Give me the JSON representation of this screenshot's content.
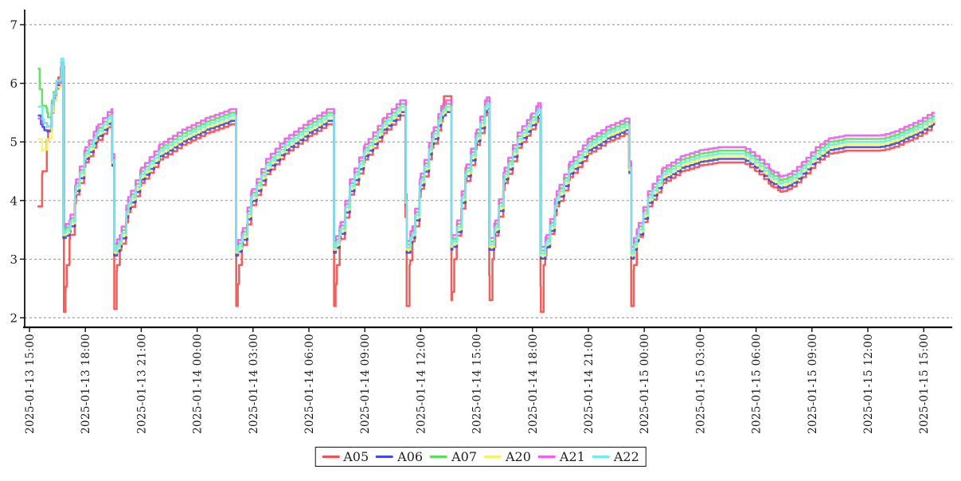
{
  "chart_data": {
    "type": "line",
    "title": "",
    "grid": "dashed-horizontal",
    "legend": {
      "position": "bottom-center",
      "entries": [
        "A05",
        "A06",
        "A07",
        "A20",
        "A21",
        "A22"
      ]
    },
    "y_axis": {
      "min": 2,
      "max": 7,
      "ticks": [
        7,
        6,
        5,
        4,
        3,
        2
      ]
    },
    "x_axis": {
      "tick_interval_hours": 3,
      "span_hours": 48.6,
      "tick_labels": [
        "2025-01-13 15:00",
        "2025-01-13 18:00",
        "2025-01-13 21:00",
        "2025-01-14 00:00",
        "2025-01-14 03:00",
        "2025-01-14 06:00",
        "2025-01-14 09:00",
        "2025-01-14 12:00",
        "2025-01-14 15:00",
        "2025-01-14 18:00",
        "2025-01-14 21:00",
        "2025-01-15 00:00",
        "2025-01-15 03:00",
        "2025-01-15 06:00",
        "2025-01-15 09:00",
        "2025-01-15 12:00",
        "2025-01-15 15:00"
      ]
    },
    "base_anchors": [
      [
        1.82,
        3.3
      ],
      [
        2.15,
        3.4
      ],
      [
        2.5,
        4.1
      ],
      [
        3.0,
        4.65
      ],
      [
        3.6,
        5.0
      ],
      [
        4.2,
        5.25
      ],
      [
        4.4,
        5.3
      ],
      [
        4.55,
        3.0
      ],
      [
        4.85,
        3.15
      ],
      [
        5.3,
        3.8
      ],
      [
        6.0,
        4.3
      ],
      [
        7.0,
        4.7
      ],
      [
        8.2,
        4.95
      ],
      [
        9.5,
        5.15
      ],
      [
        10.8,
        5.3
      ],
      [
        10.95,
        5.3
      ],
      [
        11.1,
        3.0
      ],
      [
        11.4,
        3.2
      ],
      [
        11.9,
        3.9
      ],
      [
        12.7,
        4.45
      ],
      [
        13.7,
        4.8
      ],
      [
        15.0,
        5.1
      ],
      [
        16.0,
        5.3
      ],
      [
        16.2,
        5.3
      ],
      [
        16.35,
        3.05
      ],
      [
        16.65,
        3.3
      ],
      [
        17.2,
        4.1
      ],
      [
        18.0,
        4.7
      ],
      [
        19.0,
        5.15
      ],
      [
        19.9,
        5.45
      ],
      [
        20.1,
        5.45
      ],
      [
        20.25,
        3.05
      ],
      [
        20.55,
        3.3
      ],
      [
        21.0,
        4.2
      ],
      [
        21.6,
        4.9
      ],
      [
        22.1,
        5.35
      ],
      [
        22.35,
        5.45
      ],
      [
        22.5,
        5.45
      ],
      [
        22.65,
        3.1
      ],
      [
        22.95,
        3.4
      ],
      [
        23.4,
        4.3
      ],
      [
        24.0,
        4.95
      ],
      [
        24.45,
        5.45
      ],
      [
        24.55,
        5.5
      ],
      [
        24.7,
        3.1
      ],
      [
        25.0,
        3.4
      ],
      [
        25.5,
        4.3
      ],
      [
        26.2,
        4.9
      ],
      [
        26.9,
        5.2
      ],
      [
        27.3,
        5.4
      ],
      [
        27.45,
        2.95
      ],
      [
        27.75,
        3.15
      ],
      [
        28.3,
        3.9
      ],
      [
        29.0,
        4.4
      ],
      [
        30.0,
        4.8
      ],
      [
        31.0,
        5.0
      ],
      [
        32.0,
        5.14
      ],
      [
        32.15,
        5.14
      ],
      [
        32.3,
        2.95
      ],
      [
        32.6,
        3.25
      ],
      [
        33.2,
        3.9
      ],
      [
        34.0,
        4.3
      ],
      [
        35.0,
        4.5
      ],
      [
        36.0,
        4.6
      ],
      [
        37.0,
        4.65
      ],
      [
        38.3,
        4.65
      ],
      [
        39.0,
        4.5
      ],
      [
        39.8,
        4.25
      ],
      [
        40.3,
        4.15
      ],
      [
        40.8,
        4.2
      ],
      [
        41.5,
        4.4
      ],
      [
        42.2,
        4.65
      ],
      [
        42.9,
        4.8
      ],
      [
        43.8,
        4.85
      ],
      [
        45.6,
        4.85
      ],
      [
        46.3,
        4.9
      ],
      [
        47.0,
        5.0
      ],
      [
        47.7,
        5.1
      ],
      [
        48.2,
        5.2
      ],
      [
        48.55,
        5.25
      ]
    ],
    "series": [
      {
        "name": "A05",
        "color": "#f0524f",
        "anchors": [
          [
            0.43,
            3.9
          ],
          [
            0.7,
            4.5
          ],
          [
            1.0,
            5.2
          ],
          [
            1.3,
            5.7
          ],
          [
            1.55,
            6.1
          ],
          [
            1.7,
            6.3
          ],
          [
            1.85,
            2.1
          ],
          [
            2.0,
            2.9
          ],
          [
            2.15,
            3.35
          ],
          [
            2.5,
            4.1
          ],
          [
            3.0,
            4.65
          ],
          [
            3.6,
            5.0
          ],
          [
            4.2,
            5.25
          ],
          [
            4.4,
            5.3
          ],
          [
            4.55,
            2.15
          ],
          [
            4.7,
            2.9
          ],
          [
            4.85,
            3.15
          ],
          [
            5.3,
            3.8
          ],
          [
            6.0,
            4.3
          ],
          [
            7.0,
            4.7
          ],
          [
            8.2,
            4.95
          ],
          [
            9.5,
            5.15
          ],
          [
            10.8,
            5.3
          ],
          [
            10.95,
            5.3
          ],
          [
            11.1,
            2.2
          ],
          [
            11.25,
            2.9
          ],
          [
            11.4,
            3.2
          ],
          [
            11.9,
            3.9
          ],
          [
            12.7,
            4.45
          ],
          [
            13.7,
            4.8
          ],
          [
            15.0,
            5.1
          ],
          [
            16.0,
            5.3
          ],
          [
            16.2,
            5.3
          ],
          [
            16.35,
            2.2
          ],
          [
            16.5,
            2.9
          ],
          [
            16.65,
            3.3
          ],
          [
            17.2,
            4.1
          ],
          [
            18.0,
            4.7
          ],
          [
            19.0,
            5.15
          ],
          [
            19.9,
            5.45
          ],
          [
            20.1,
            5.45
          ],
          [
            20.25,
            2.2
          ],
          [
            20.4,
            2.9
          ],
          [
            20.55,
            3.3
          ],
          [
            21.0,
            4.2
          ],
          [
            21.6,
            4.9
          ],
          [
            22.1,
            5.35
          ],
          [
            22.25,
            5.78
          ],
          [
            22.5,
            5.78
          ],
          [
            22.65,
            2.3
          ],
          [
            22.8,
            3.0
          ],
          [
            22.95,
            3.4
          ],
          [
            23.4,
            4.3
          ],
          [
            24.0,
            4.95
          ],
          [
            24.45,
            5.45
          ],
          [
            24.55,
            5.5
          ],
          [
            24.7,
            2.3
          ],
          [
            24.85,
            3.0
          ],
          [
            25.0,
            3.4
          ],
          [
            25.5,
            4.3
          ],
          [
            26.2,
            4.9
          ],
          [
            26.9,
            5.2
          ],
          [
            27.3,
            5.4
          ],
          [
            27.45,
            2.1
          ],
          [
            27.6,
            2.9
          ],
          [
            27.75,
            3.2
          ],
          [
            28.3,
            3.9
          ],
          [
            29.0,
            4.4
          ],
          [
            30.0,
            4.8
          ],
          [
            31.0,
            5.0
          ],
          [
            32.0,
            5.14
          ],
          [
            32.15,
            5.14
          ],
          [
            32.3,
            2.2
          ],
          [
            32.45,
            2.9
          ],
          [
            32.6,
            3.3
          ],
          [
            33.2,
            3.9
          ],
          [
            34.0,
            4.3
          ],
          [
            35.0,
            4.5
          ],
          [
            36.0,
            4.6
          ],
          [
            37.0,
            4.65
          ],
          [
            38.3,
            4.65
          ],
          [
            39.0,
            4.5
          ],
          [
            39.8,
            4.25
          ],
          [
            40.3,
            4.15
          ],
          [
            40.8,
            4.2
          ],
          [
            41.5,
            4.4
          ],
          [
            42.2,
            4.65
          ],
          [
            42.9,
            4.8
          ],
          [
            43.8,
            4.85
          ],
          [
            45.6,
            4.85
          ],
          [
            46.3,
            4.9
          ],
          [
            47.0,
            5.0
          ],
          [
            47.7,
            5.1
          ],
          [
            48.2,
            5.2
          ],
          [
            48.55,
            5.35
          ]
        ]
      },
      {
        "name": "A06",
        "color": "#4848db",
        "offset": 0.06,
        "start_anchors": [
          [
            0.45,
            5.45
          ],
          [
            0.62,
            5.3
          ],
          [
            0.8,
            5.2
          ],
          [
            1.0,
            5.18
          ],
          [
            1.3,
            5.75
          ],
          [
            1.7,
            6.32
          ]
        ]
      },
      {
        "name": "A07",
        "color": "#5cdf5c",
        "offset": 0.2,
        "start_anchors": [
          [
            0.45,
            6.25
          ],
          [
            0.55,
            5.9
          ],
          [
            0.68,
            5.62
          ],
          [
            0.9,
            5.58
          ],
          [
            1.0,
            5.42
          ],
          [
            1.3,
            5.85
          ],
          [
            1.7,
            6.36
          ]
        ]
      },
      {
        "name": "A20",
        "color": "#f6f660",
        "offset": 0.11,
        "start_anchors": [
          [
            0.45,
            5.05
          ],
          [
            0.68,
            4.85
          ],
          [
            0.95,
            5.05
          ],
          [
            1.3,
            5.7
          ],
          [
            1.7,
            6.33
          ]
        ]
      },
      {
        "name": "A21",
        "color": "#f25cf2",
        "offset": 0.26,
        "start_anchors": [
          [
            0.45,
            5.4
          ],
          [
            0.7,
            5.32
          ],
          [
            0.95,
            5.26
          ],
          [
            1.3,
            5.8
          ],
          [
            1.7,
            6.35
          ]
        ]
      },
      {
        "name": "A22",
        "color": "#6fecec",
        "offset": 0.15,
        "start_anchors": [
          [
            0.45,
            5.6
          ],
          [
            0.78,
            5.32
          ],
          [
            1.0,
            5.26
          ],
          [
            1.3,
            5.82
          ],
          [
            1.7,
            6.42
          ]
        ]
      }
    ]
  }
}
